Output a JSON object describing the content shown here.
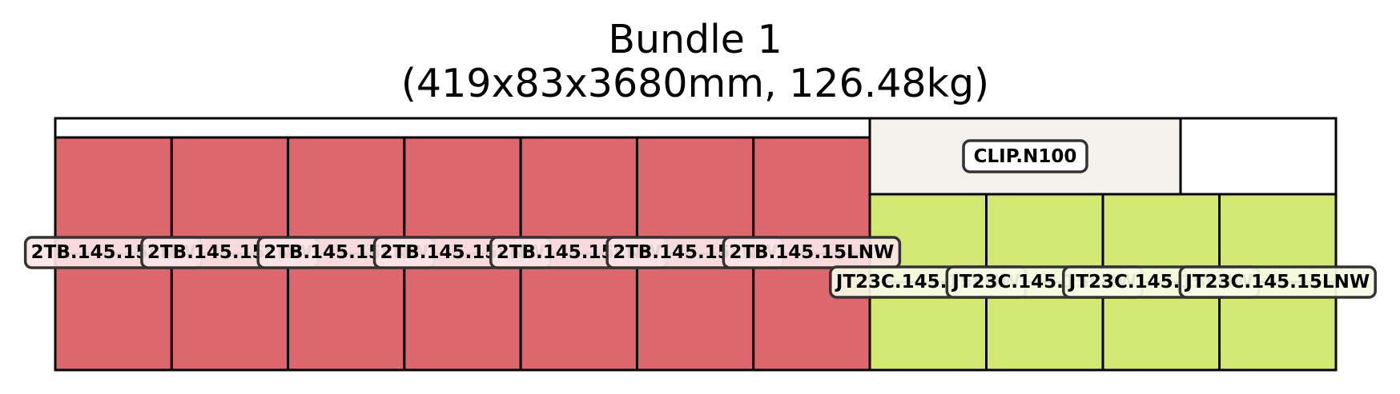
{
  "title": {
    "line1": "Bundle 1",
    "line2": "(419x83x3680mm, 126.48kg)"
  },
  "colors": {
    "red_item": "#dc686d",
    "red_label_bg": "#fbe4e6",
    "green_item": "#d3e873",
    "green_label_bg": "#f7fbe4",
    "clip_fill": "#f4f0eb",
    "outline": "#000000"
  },
  "items": {
    "red": {
      "columns": 7,
      "rows": 2,
      "label": "2TB.145.15LNW"
    },
    "green": {
      "columns": 4,
      "rows": 2,
      "label": "JT23C.145.15LNW"
    },
    "clip": {
      "label": "CLIP.N100"
    }
  }
}
